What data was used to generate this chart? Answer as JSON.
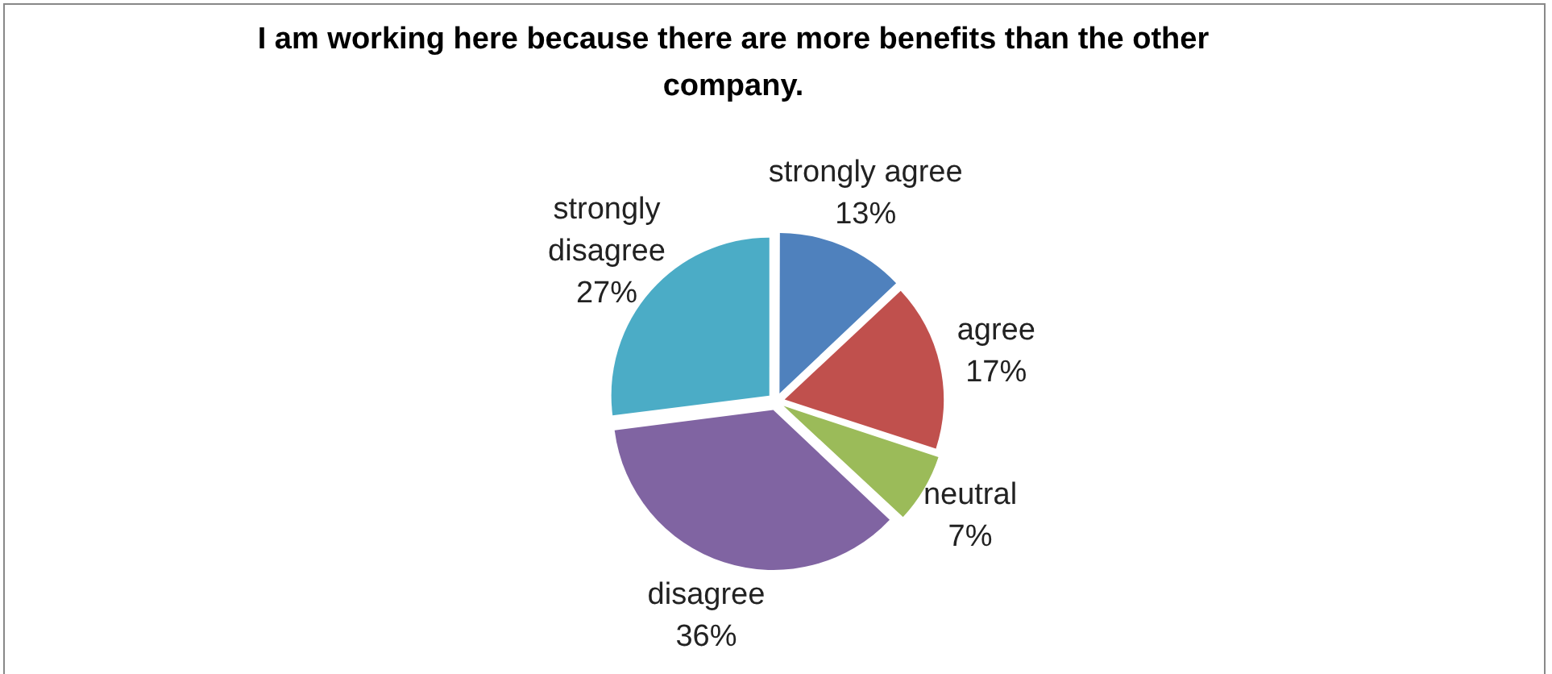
{
  "chart_data": {
    "type": "pie",
    "title": "I am working here because there are more benefits than the other company.",
    "categories": [
      "strongly agree",
      "agree",
      "neutral",
      "disagree",
      "strongly disagree"
    ],
    "values": [
      13,
      17,
      7,
      36,
      27
    ],
    "colors": [
      "#4f81bd",
      "#c0504d",
      "#9bbb59",
      "#8064a2",
      "#4bacc6"
    ],
    "value_labels": [
      "13%",
      "17%",
      "7%",
      "36%",
      "27%"
    ],
    "legend": false
  }
}
